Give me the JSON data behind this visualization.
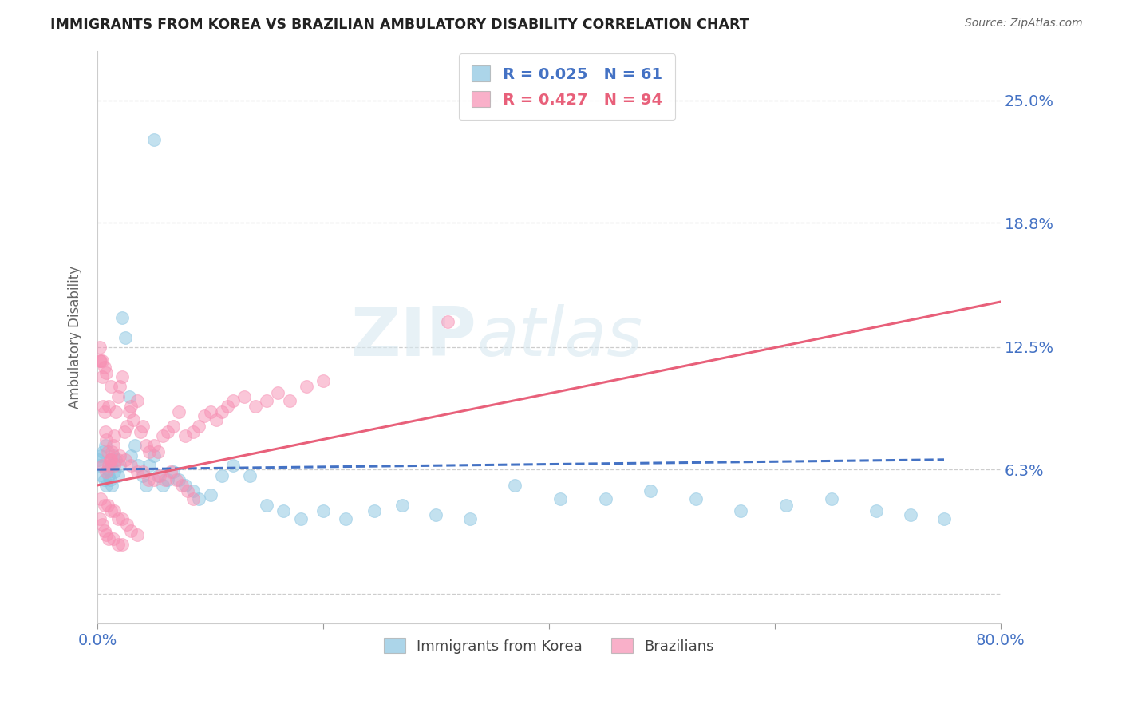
{
  "title": "IMMIGRANTS FROM KOREA VS BRAZILIAN AMBULATORY DISABILITY CORRELATION CHART",
  "source": "Source: ZipAtlas.com",
  "ylabel": "Ambulatory Disability",
  "xlim": [
    0.0,
    0.8
  ],
  "ylim": [
    -0.015,
    0.275
  ],
  "yticks": [
    0.0,
    0.063,
    0.125,
    0.188,
    0.25
  ],
  "ytick_labels": [
    "",
    "6.3%",
    "12.5%",
    "18.8%",
    "25.0%"
  ],
  "xticks": [
    0.0,
    0.2,
    0.4,
    0.6,
    0.8
  ],
  "xtick_labels": [
    "0.0%",
    "",
    "",
    "",
    "80.0%"
  ],
  "korea_color": "#89c4e1",
  "brazil_color": "#f78fb3",
  "korea_line_color": "#4472c4",
  "brazil_line_color": "#e8607a",
  "korea_R": 0.025,
  "korea_N": 61,
  "brazil_R": 0.427,
  "brazil_N": 94,
  "legend_label_korea": "Immigrants from Korea",
  "legend_label_brazil": "Brazilians",
  "watermark": "ZIPatlas",
  "background_color": "#ffffff",
  "grid_color": "#c8c8c8",
  "axis_label_color": "#4472c4",
  "title_color": "#222222",
  "korea_line_x0": 0.0,
  "korea_line_y0": 0.063,
  "korea_line_x1": 0.75,
  "korea_line_y1": 0.068,
  "brazil_line_x0": 0.0,
  "brazil_line_y0": 0.055,
  "brazil_line_x1": 0.8,
  "brazil_line_y1": 0.148,
  "korea_scatter_x": [
    0.001,
    0.002,
    0.003,
    0.004,
    0.005,
    0.006,
    0.007,
    0.008,
    0.009,
    0.01,
    0.011,
    0.012,
    0.013,
    0.014,
    0.015,
    0.016,
    0.018,
    0.02,
    0.022,
    0.025,
    0.028,
    0.03,
    0.033,
    0.036,
    0.04,
    0.043,
    0.046,
    0.05,
    0.054,
    0.058,
    0.062,
    0.067,
    0.072,
    0.078,
    0.085,
    0.09,
    0.1,
    0.11,
    0.12,
    0.135,
    0.15,
    0.165,
    0.18,
    0.2,
    0.22,
    0.245,
    0.27,
    0.3,
    0.33,
    0.37,
    0.41,
    0.45,
    0.49,
    0.53,
    0.57,
    0.61,
    0.65,
    0.69,
    0.72,
    0.75,
    0.05
  ],
  "korea_scatter_y": [
    0.068,
    0.065,
    0.07,
    0.06,
    0.072,
    0.058,
    0.075,
    0.055,
    0.063,
    0.06,
    0.058,
    0.065,
    0.055,
    0.07,
    0.062,
    0.068,
    0.06,
    0.065,
    0.14,
    0.13,
    0.1,
    0.07,
    0.075,
    0.065,
    0.06,
    0.055,
    0.065,
    0.07,
    0.06,
    0.055,
    0.058,
    0.062,
    0.058,
    0.055,
    0.052,
    0.048,
    0.05,
    0.06,
    0.065,
    0.06,
    0.045,
    0.042,
    0.038,
    0.042,
    0.038,
    0.042,
    0.045,
    0.04,
    0.038,
    0.055,
    0.048,
    0.048,
    0.052,
    0.048,
    0.042,
    0.045,
    0.048,
    0.042,
    0.04,
    0.038,
    0.23
  ],
  "brazil_scatter_x": [
    0.002,
    0.003,
    0.004,
    0.005,
    0.006,
    0.007,
    0.008,
    0.009,
    0.01,
    0.011,
    0.012,
    0.013,
    0.014,
    0.015,
    0.016,
    0.018,
    0.02,
    0.022,
    0.024,
    0.026,
    0.028,
    0.03,
    0.032,
    0.035,
    0.038,
    0.04,
    0.043,
    0.046,
    0.05,
    0.054,
    0.058,
    0.062,
    0.067,
    0.072,
    0.078,
    0.085,
    0.09,
    0.095,
    0.1,
    0.105,
    0.11,
    0.115,
    0.12,
    0.13,
    0.14,
    0.15,
    0.16,
    0.17,
    0.185,
    0.2,
    0.005,
    0.008,
    0.01,
    0.012,
    0.015,
    0.018,
    0.02,
    0.025,
    0.03,
    0.035,
    0.04,
    0.045,
    0.05,
    0.055,
    0.06,
    0.065,
    0.07,
    0.075,
    0.08,
    0.085,
    0.003,
    0.006,
    0.009,
    0.012,
    0.015,
    0.018,
    0.022,
    0.026,
    0.03,
    0.035,
    0.002,
    0.004,
    0.006,
    0.008,
    0.01,
    0.014,
    0.018,
    0.022,
    0.31,
    0.002,
    0.004,
    0.006,
    0.008,
    0.012
  ],
  "brazil_scatter_y": [
    0.125,
    0.118,
    0.11,
    0.095,
    0.092,
    0.082,
    0.078,
    0.072,
    0.095,
    0.068,
    0.068,
    0.072,
    0.075,
    0.08,
    0.092,
    0.1,
    0.105,
    0.11,
    0.082,
    0.085,
    0.092,
    0.095,
    0.088,
    0.098,
    0.082,
    0.085,
    0.075,
    0.072,
    0.075,
    0.072,
    0.08,
    0.082,
    0.085,
    0.092,
    0.08,
    0.082,
    0.085,
    0.09,
    0.092,
    0.088,
    0.092,
    0.095,
    0.098,
    0.1,
    0.095,
    0.098,
    0.102,
    0.098,
    0.105,
    0.108,
    0.065,
    0.062,
    0.065,
    0.068,
    0.065,
    0.068,
    0.07,
    0.068,
    0.065,
    0.062,
    0.062,
    0.058,
    0.058,
    0.06,
    0.058,
    0.062,
    0.058,
    0.055,
    0.052,
    0.048,
    0.048,
    0.045,
    0.045,
    0.042,
    0.042,
    0.038,
    0.038,
    0.035,
    0.032,
    0.03,
    0.038,
    0.035,
    0.032,
    0.03,
    0.028,
    0.028,
    0.025,
    0.025,
    0.138,
    0.118,
    0.118,
    0.115,
    0.112,
    0.105
  ]
}
